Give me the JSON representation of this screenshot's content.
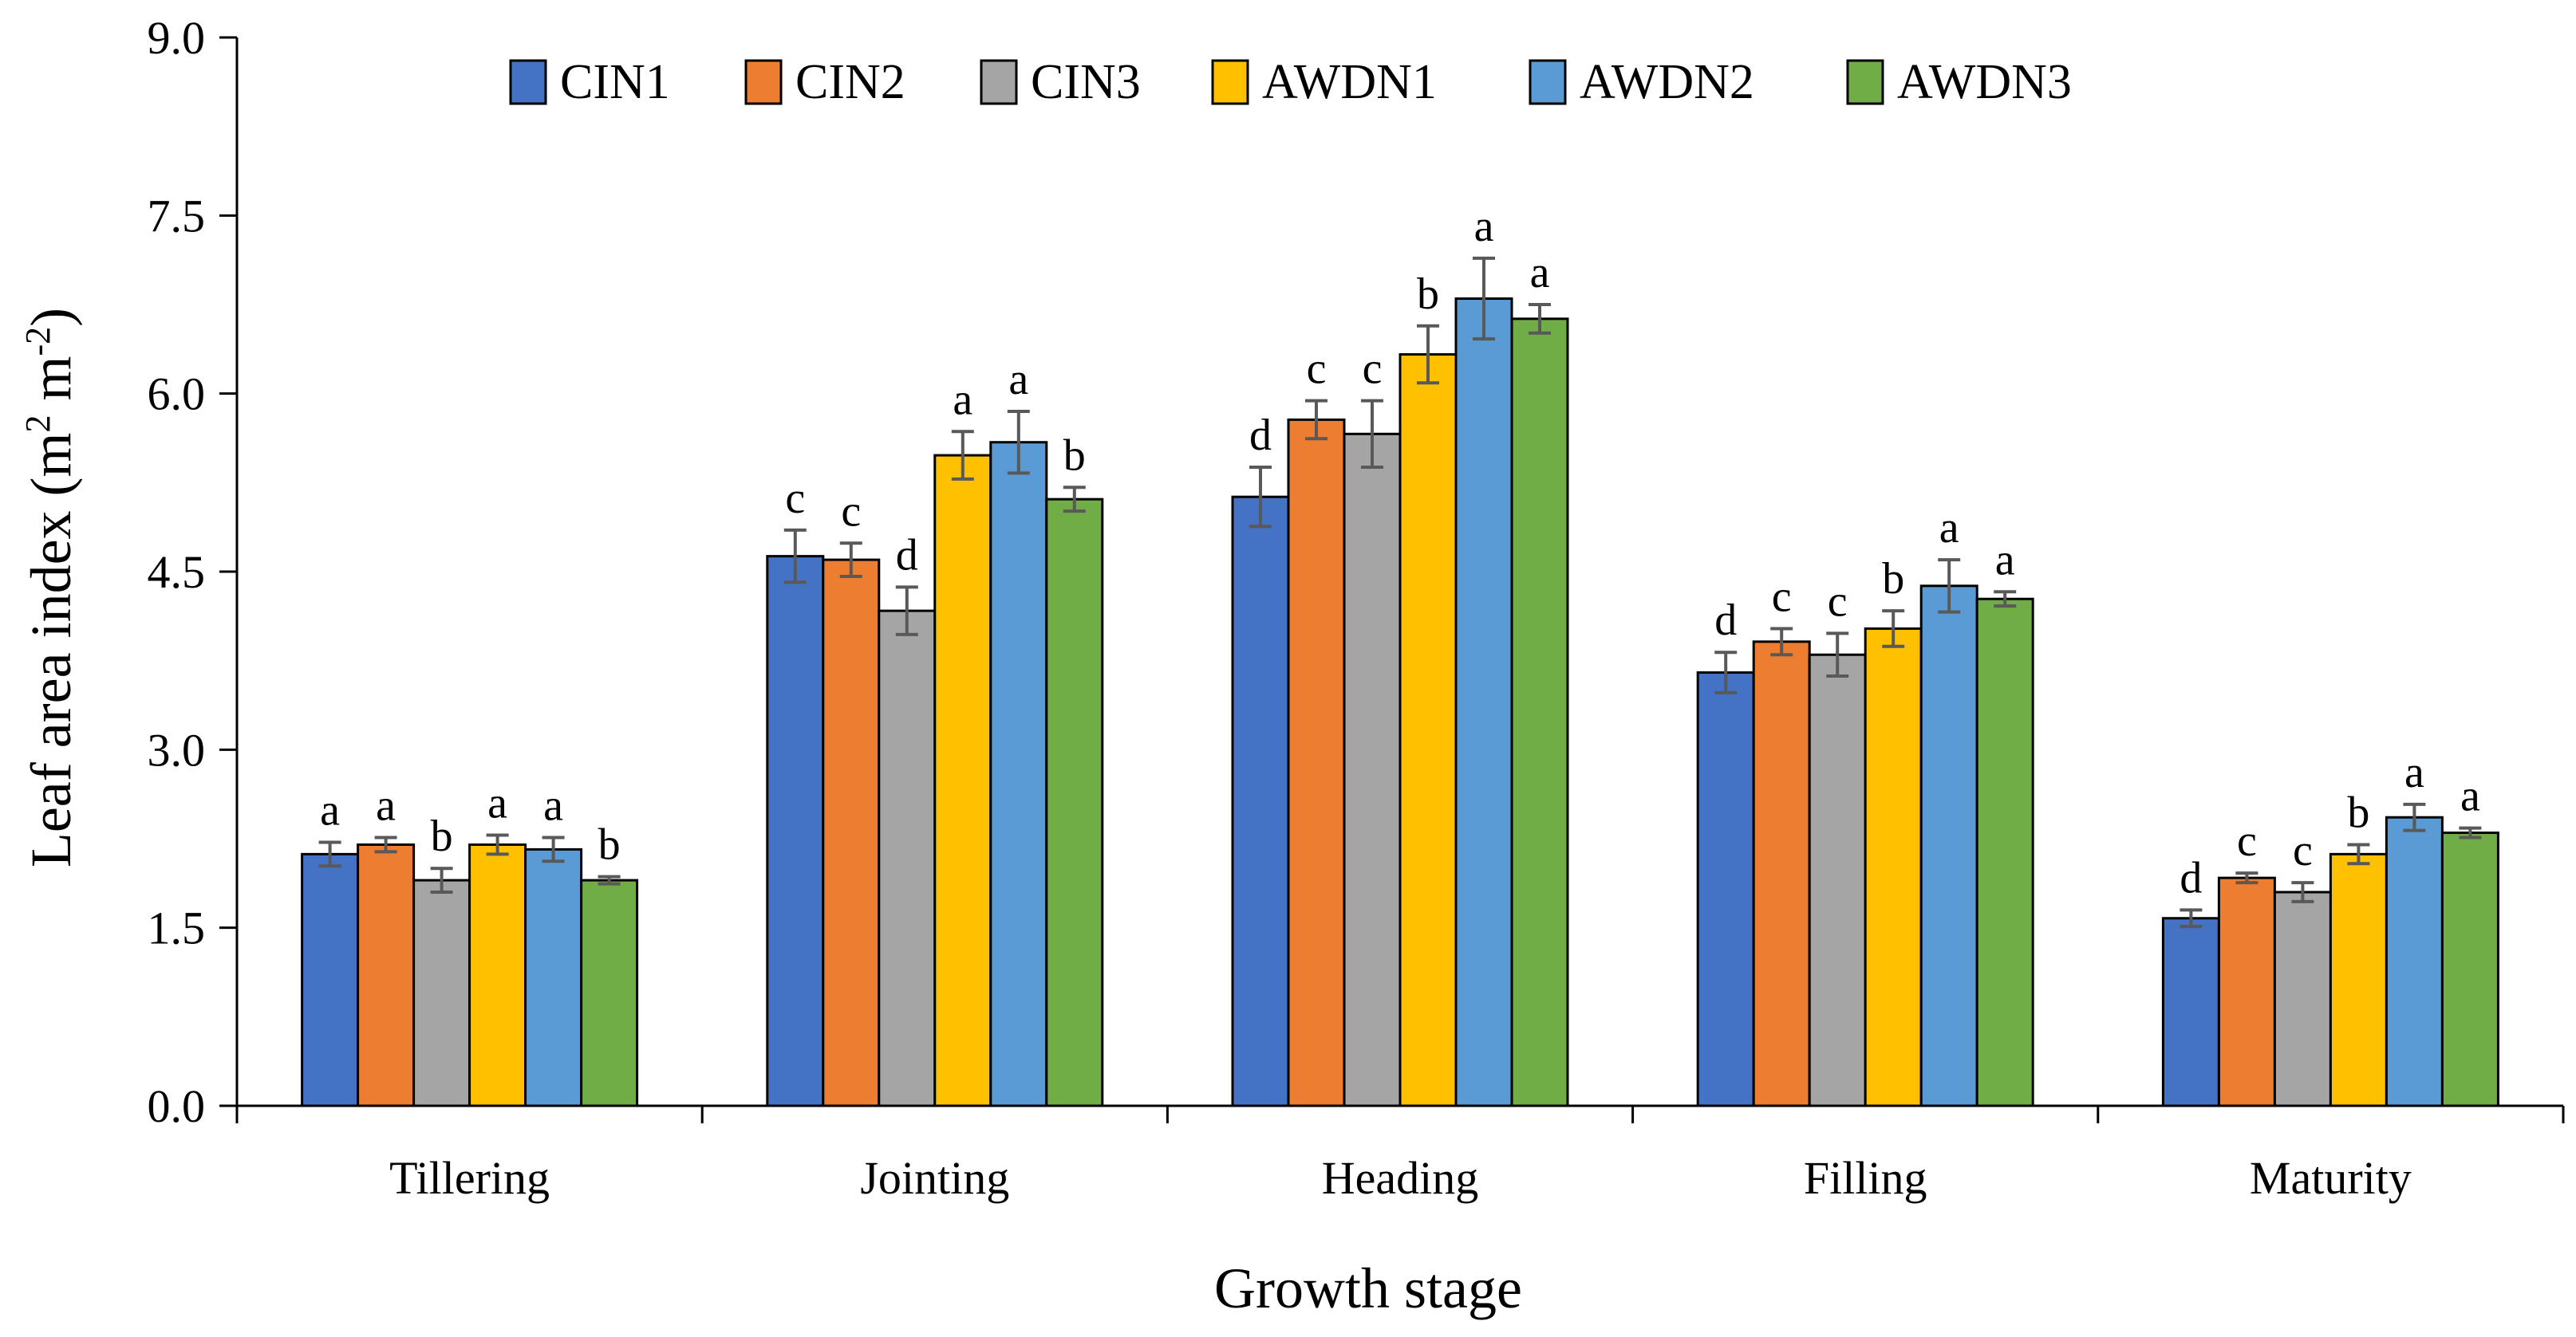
{
  "chart_data": {
    "type": "bar",
    "title": "",
    "xlabel": "Growth stage",
    "ylabel": "Leaf area index",
    "ylabel_unit": {
      "prefix": "(m",
      "sup1": "2",
      "mid": " m",
      "sup2": "-2",
      "suffix": ")"
    },
    "ylim": [
      0,
      9
    ],
    "yticks": [
      "0.0",
      "1.5",
      "3.0",
      "4.5",
      "6.0",
      "7.5",
      "9.0"
    ],
    "ytick_values": [
      0,
      1.5,
      3.0,
      4.5,
      6.0,
      7.5,
      9.0
    ],
    "grid": false,
    "legend_position": "top",
    "categories": [
      "Tillering",
      "Jointing",
      "Heading",
      "Filling",
      "Maturity"
    ],
    "series": [
      {
        "name": "CIN1",
        "color": "#4472C4",
        "values": [
          2.12,
          4.63,
          5.13,
          3.65,
          1.58
        ],
        "errors": [
          0.1,
          0.22,
          0.25,
          0.17,
          0.07
        ],
        "labels": [
          "a",
          "c",
          "d",
          "d",
          "d"
        ]
      },
      {
        "name": "CIN2",
        "color": "#ED7D31",
        "values": [
          2.2,
          4.6,
          5.78,
          3.91,
          1.92
        ],
        "errors": [
          0.06,
          0.14,
          0.16,
          0.11,
          0.04
        ],
        "labels": [
          "a",
          "c",
          "c",
          "c",
          "c"
        ]
      },
      {
        "name": "CIN3",
        "color": "#A5A5A5",
        "values": [
          1.9,
          4.17,
          5.66,
          3.8,
          1.8
        ],
        "errors": [
          0.1,
          0.2,
          0.28,
          0.18,
          0.08
        ],
        "labels": [
          "b",
          "d",
          "c",
          "c",
          "c"
        ]
      },
      {
        "name": "AWDN1",
        "color": "#FFC000",
        "values": [
          2.2,
          5.48,
          6.33,
          4.02,
          2.12
        ],
        "errors": [
          0.08,
          0.2,
          0.24,
          0.15,
          0.08
        ],
        "labels": [
          "a",
          "a",
          "b",
          "b",
          "b"
        ]
      },
      {
        "name": "AWDN2",
        "color": "#5B9BD5",
        "values": [
          2.16,
          5.59,
          6.8,
          4.38,
          2.43
        ],
        "errors": [
          0.1,
          0.26,
          0.34,
          0.22,
          0.11
        ],
        "labels": [
          "a",
          "a",
          "a",
          "a",
          "a"
        ]
      },
      {
        "name": "AWDN3",
        "color": "#70AD47",
        "values": [
          1.9,
          5.11,
          6.63,
          4.27,
          2.3
        ],
        "errors": [
          0.03,
          0.1,
          0.12,
          0.06,
          0.04
        ],
        "labels": [
          "b",
          "b",
          "a",
          "a",
          "a"
        ]
      }
    ],
    "error_bar_color": "#595959"
  }
}
